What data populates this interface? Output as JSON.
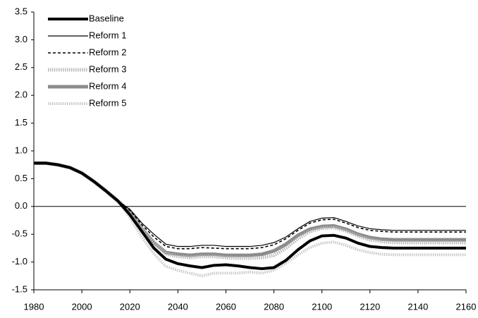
{
  "chart_data": {
    "type": "line",
    "x": [
      1980,
      1985,
      1990,
      1995,
      2000,
      2005,
      2010,
      2015,
      2020,
      2025,
      2030,
      2035,
      2040,
      2045,
      2050,
      2055,
      2060,
      2065,
      2070,
      2075,
      2080,
      2085,
      2090,
      2095,
      2100,
      2105,
      2110,
      2115,
      2120,
      2125,
      2130,
      2135,
      2140,
      2145,
      2150,
      2155,
      2160
    ],
    "series": [
      {
        "name": "Baseline",
        "color": "#000000",
        "line_width": 4,
        "style": "solid",
        "values": [
          0.78,
          0.78,
          0.75,
          0.7,
          0.6,
          0.45,
          0.28,
          0.1,
          -0.15,
          -0.45,
          -0.75,
          -0.95,
          -1.03,
          -1.07,
          -1.1,
          -1.06,
          -1.05,
          -1.07,
          -1.1,
          -1.12,
          -1.1,
          -0.97,
          -0.78,
          -0.62,
          -0.53,
          -0.52,
          -0.57,
          -0.66,
          -0.72,
          -0.74,
          -0.75,
          -0.75,
          -0.75,
          -0.75,
          -0.75,
          -0.75,
          -0.75
        ]
      },
      {
        "name": "Reform 1",
        "color": "#000000",
        "line_width": 1.2,
        "style": "solid",
        "values": [
          0.78,
          0.78,
          0.75,
          0.7,
          0.6,
          0.45,
          0.28,
          0.1,
          -0.05,
          -0.3,
          -0.5,
          -0.68,
          -0.72,
          -0.72,
          -0.7,
          -0.7,
          -0.72,
          -0.72,
          -0.72,
          -0.7,
          -0.65,
          -0.55,
          -0.4,
          -0.27,
          -0.21,
          -0.2,
          -0.27,
          -0.35,
          -0.4,
          -0.42,
          -0.43,
          -0.43,
          -0.43,
          -0.43,
          -0.43,
          -0.43,
          -0.43
        ]
      },
      {
        "name": "Reform 2",
        "color": "#000000",
        "line_width": 1.6,
        "style": "dashed",
        "values": [
          0.78,
          0.78,
          0.75,
          0.7,
          0.6,
          0.45,
          0.28,
          0.1,
          -0.07,
          -0.33,
          -0.55,
          -0.72,
          -0.76,
          -0.76,
          -0.74,
          -0.75,
          -0.76,
          -0.76,
          -0.76,
          -0.74,
          -0.69,
          -0.58,
          -0.43,
          -0.3,
          -0.24,
          -0.23,
          -0.3,
          -0.38,
          -0.43,
          -0.45,
          -0.46,
          -0.46,
          -0.46,
          -0.46,
          -0.46,
          -0.46,
          -0.46
        ]
      },
      {
        "name": "Reform 3",
        "color": "#b8b8b8",
        "line_width": 5,
        "style": "dotted",
        "values": [
          0.78,
          0.78,
          0.75,
          0.7,
          0.6,
          0.45,
          0.28,
          0.1,
          -0.1,
          -0.4,
          -0.65,
          -0.85,
          -0.9,
          -0.92,
          -0.9,
          -0.9,
          -0.92,
          -0.93,
          -0.93,
          -0.92,
          -0.88,
          -0.75,
          -0.58,
          -0.45,
          -0.39,
          -0.38,
          -0.44,
          -0.53,
          -0.6,
          -0.63,
          -0.65,
          -0.65,
          -0.65,
          -0.65,
          -0.65,
          -0.65,
          -0.65
        ]
      },
      {
        "name": "Reform 4",
        "color": "#8c8c8c",
        "line_width": 5,
        "style": "solid",
        "values": [
          0.78,
          0.78,
          0.75,
          0.7,
          0.6,
          0.45,
          0.28,
          0.1,
          -0.1,
          -0.4,
          -0.65,
          -0.83,
          -0.86,
          -0.88,
          -0.86,
          -0.86,
          -0.88,
          -0.88,
          -0.88,
          -0.86,
          -0.8,
          -0.68,
          -0.52,
          -0.41,
          -0.36,
          -0.35,
          -0.41,
          -0.5,
          -0.56,
          -0.59,
          -0.6,
          -0.6,
          -0.6,
          -0.6,
          -0.6,
          -0.6,
          -0.6
        ]
      },
      {
        "name": "Reform 5",
        "color": "#c8c8c8",
        "line_width": 4,
        "style": "dotted",
        "values": [
          0.78,
          0.78,
          0.75,
          0.7,
          0.6,
          0.45,
          0.28,
          0.1,
          -0.2,
          -0.55,
          -0.85,
          -1.08,
          -1.15,
          -1.2,
          -1.25,
          -1.2,
          -1.2,
          -1.2,
          -1.18,
          -1.2,
          -1.15,
          -1.02,
          -0.87,
          -0.74,
          -0.66,
          -0.64,
          -0.7,
          -0.78,
          -0.83,
          -0.86,
          -0.87,
          -0.87,
          -0.87,
          -0.87,
          -0.87,
          -0.87,
          -0.87
        ]
      }
    ],
    "xlim": [
      1980,
      2160
    ],
    "xticks": [
      1980,
      2000,
      2020,
      2040,
      2060,
      2080,
      2100,
      2120,
      2140,
      2160
    ],
    "ylim": [
      -1.5,
      3.5
    ],
    "yticks": [
      {
        "value": -1.5,
        "label": "-1.5"
      },
      {
        "value": -1,
        "label": "-1.0"
      },
      -0.5,
      {
        "value": 0,
        "label": "0.0"
      },
      0.5,
      {
        "value": 1,
        "label": "1.0"
      },
      1.5,
      {
        "value": 2,
        "label": "2.0"
      },
      2.5,
      {
        "value": 3,
        "label": "3.0"
      },
      3.5
    ],
    "legend": "top-left"
  }
}
